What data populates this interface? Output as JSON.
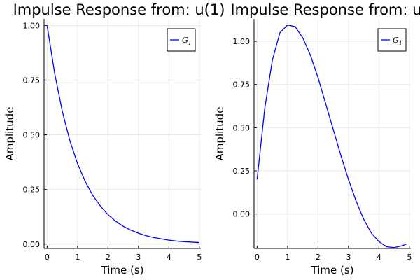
{
  "chart_data": [
    {
      "type": "line",
      "title": "Impulse Response from: u(1)",
      "xlabel": "Time (s)",
      "ylabel": "Amplitude",
      "xlim": [
        -0.1,
        5.05
      ],
      "ylim": [
        -0.02,
        1.03
      ],
      "xticks": [
        0,
        1,
        2,
        3,
        4,
        5
      ],
      "xtick_labels": [
        "0",
        "1",
        "2",
        "3",
        "4",
        "5"
      ],
      "yticks": [
        0.0,
        0.25,
        0.5,
        0.75,
        1.0
      ],
      "ytick_labels": [
        "0.00",
        "0.25",
        "0.50",
        "0.75",
        "1.00"
      ],
      "grid": true,
      "legend": "top-right",
      "series": [
        {
          "name": "G",
          "name_subscript": "1",
          "color": "#0000ff",
          "x": [
            0,
            0.25,
            0.5,
            0.75,
            1.0,
            1.25,
            1.5,
            1.75,
            2.0,
            2.25,
            2.5,
            2.75,
            3.0,
            3.25,
            3.5,
            3.75,
            4.0,
            4.25,
            4.5,
            4.75,
            5.0
          ],
          "y": [
            1.0,
            0.779,
            0.607,
            0.472,
            0.368,
            0.287,
            0.223,
            0.174,
            0.135,
            0.105,
            0.082,
            0.064,
            0.05,
            0.039,
            0.03,
            0.024,
            0.018,
            0.014,
            0.011,
            0.009,
            0.007
          ]
        }
      ]
    },
    {
      "type": "line",
      "title": "Impulse Response from: u(",
      "xlabel": "Time (s)",
      "ylabel": "Amplitude",
      "xlim": [
        -0.1,
        5.05
      ],
      "ylim": [
        -0.2,
        1.13
      ],
      "xticks": [
        0,
        1,
        2,
        3,
        4,
        5
      ],
      "xtick_labels": [
        "0",
        "1",
        "2",
        "3",
        "4",
        "5"
      ],
      "yticks": [
        0.0,
        0.25,
        0.5,
        0.75,
        1.0
      ],
      "ytick_labels": [
        "0.00",
        "0.25",
        "0.50",
        "0.75",
        "1.00"
      ],
      "grid": true,
      "legend": "top-right",
      "series": [
        {
          "name": "G",
          "name_subscript": "1",
          "color": "#0000ff",
          "x": [
            0,
            0.25,
            0.5,
            0.75,
            1.0,
            1.25,
            1.5,
            1.75,
            2.0,
            2.25,
            2.5,
            2.75,
            3.0,
            3.25,
            3.5,
            3.75,
            4.0,
            4.25,
            4.5,
            4.75,
            4.9
          ],
          "y": [
            0.2,
            0.61,
            0.89,
            1.05,
            1.095,
            1.085,
            1.02,
            0.92,
            0.79,
            0.64,
            0.49,
            0.34,
            0.2,
            0.075,
            -0.03,
            -0.11,
            -0.16,
            -0.19,
            -0.195,
            -0.185,
            -0.175
          ]
        }
      ]
    }
  ]
}
